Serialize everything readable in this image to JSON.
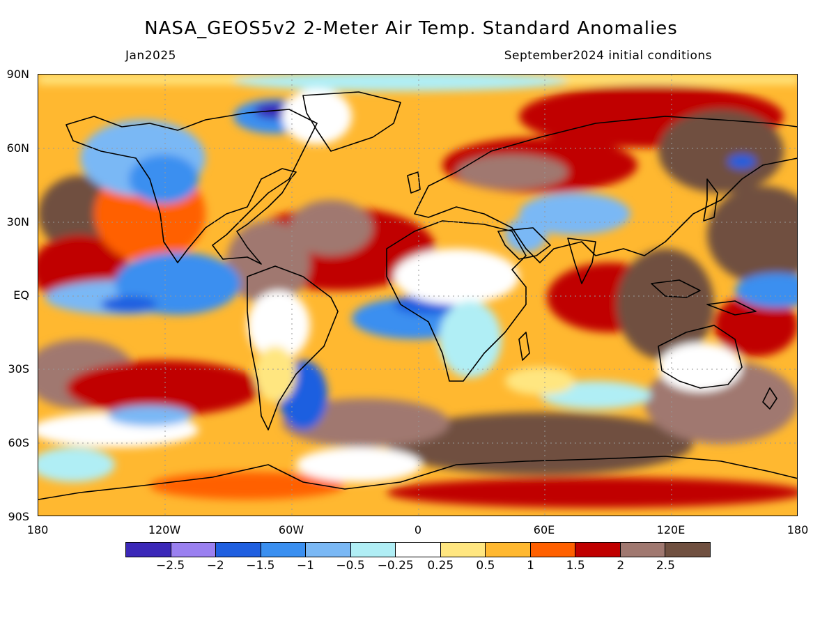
{
  "header": {
    "title": "NASA_GEOS5v2 2-Meter Air Temp. Standard Anomalies",
    "valid_month": "Jan2025",
    "init_conditions": "September2024 initial conditions"
  },
  "axes": {
    "lat_labels": [
      "90N",
      "60N",
      "30N",
      "EQ",
      "30S",
      "60S",
      "90S"
    ],
    "lon_labels": [
      "180",
      "120W",
      "60W",
      "0",
      "60E",
      "120E",
      "180"
    ]
  },
  "colorbar": {
    "colors": [
      "#3b28b8",
      "#9a80f0",
      "#1f5fe0",
      "#3a8ff0",
      "#7ab8f5",
      "#b0eef5",
      "#ffffff",
      "#ffe680",
      "#ffb830",
      "#ff6000",
      "#c00000",
      "#a07870",
      "#705040"
    ],
    "labels": [
      "-2.5",
      "-2",
      "-1.5",
      "-1",
      "-0.5",
      "-0.25",
      "0.25",
      "0.5",
      "1",
      "1.5",
      "2",
      "2.5"
    ]
  },
  "map_colors": {
    "ocean_warm": "#ffb830",
    "land_outline": "#000000",
    "grid": "#999999"
  }
}
